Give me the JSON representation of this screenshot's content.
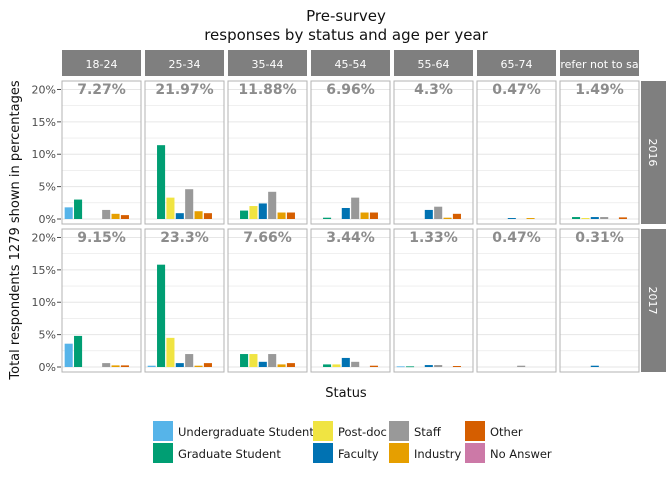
{
  "chart_data": {
    "type": "bar",
    "title": "Pre-survey",
    "subtitle": "responses by status and age per year",
    "xlabel": "Status",
    "ylabel": "Total respondents 1279 shown in percentages",
    "ylim": [
      0,
      0.21
    ],
    "y_ticks": [
      "0%",
      "5%",
      "10%",
      "15%",
      "20%"
    ],
    "y_tick_values": [
      0,
      0.05,
      0.1,
      0.15,
      0.2
    ],
    "facet_columns": [
      "18-24",
      "25-34",
      "35-44",
      "45-54",
      "55-64",
      "65-74",
      "Prefer not to say"
    ],
    "facet_rows": [
      "2016",
      "2017"
    ],
    "categories": [
      "Undergraduate Student",
      "Graduate Student",
      "Post-doc",
      "Faculty",
      "Staff",
      "Industry",
      "Other",
      "No Answer"
    ],
    "colors": [
      "#56B4E9",
      "#009E73",
      "#F0E442",
      "#0072B2",
      "#999999",
      "#E69F00",
      "#D55E00",
      "#CC79A7"
    ],
    "legend_position": "bottom",
    "panel_totals": [
      [
        "7.27%",
        "21.97%",
        "11.88%",
        "6.96%",
        "4.3%",
        "0.47%",
        "1.49%"
      ],
      [
        "9.15%",
        "23.3%",
        "7.66%",
        "3.44%",
        "1.33%",
        "0.47%",
        "0.31%"
      ]
    ],
    "values": [
      [
        [
          1.8,
          3.0,
          0,
          0,
          1.4,
          0.8,
          0.6,
          0
        ],
        [
          0,
          11.4,
          3.3,
          0.9,
          4.6,
          1.2,
          0.9,
          0
        ],
        [
          0,
          1.3,
          2.0,
          2.4,
          4.2,
          1.0,
          1.0,
          0
        ],
        [
          0,
          0.2,
          0,
          1.7,
          3.3,
          1.0,
          1.0,
          0
        ],
        [
          0,
          0,
          0,
          1.4,
          1.9,
          0.2,
          0.8,
          0
        ],
        [
          0,
          0,
          0,
          0.15,
          0,
          0.15,
          0,
          0
        ],
        [
          0,
          0.3,
          0.15,
          0.3,
          0.3,
          0,
          0.25,
          0
        ]
      ],
      [
        [
          3.6,
          4.8,
          0,
          0,
          0.6,
          0.25,
          0.25,
          0
        ],
        [
          0.2,
          15.8,
          4.5,
          0.6,
          2.0,
          0.2,
          0.6,
          0
        ],
        [
          0,
          2.0,
          2.0,
          0.8,
          2.0,
          0.4,
          0.6,
          0
        ],
        [
          0,
          0.4,
          0.4,
          1.4,
          0.8,
          0,
          0.2,
          0
        ],
        [
          0.1,
          0.1,
          0,
          0.3,
          0.3,
          0,
          0.15,
          0
        ],
        [
          0,
          0,
          0,
          0,
          0.2,
          0,
          0,
          0
        ],
        [
          0,
          0,
          0,
          0.2,
          0,
          0,
          0,
          0
        ]
      ]
    ]
  }
}
